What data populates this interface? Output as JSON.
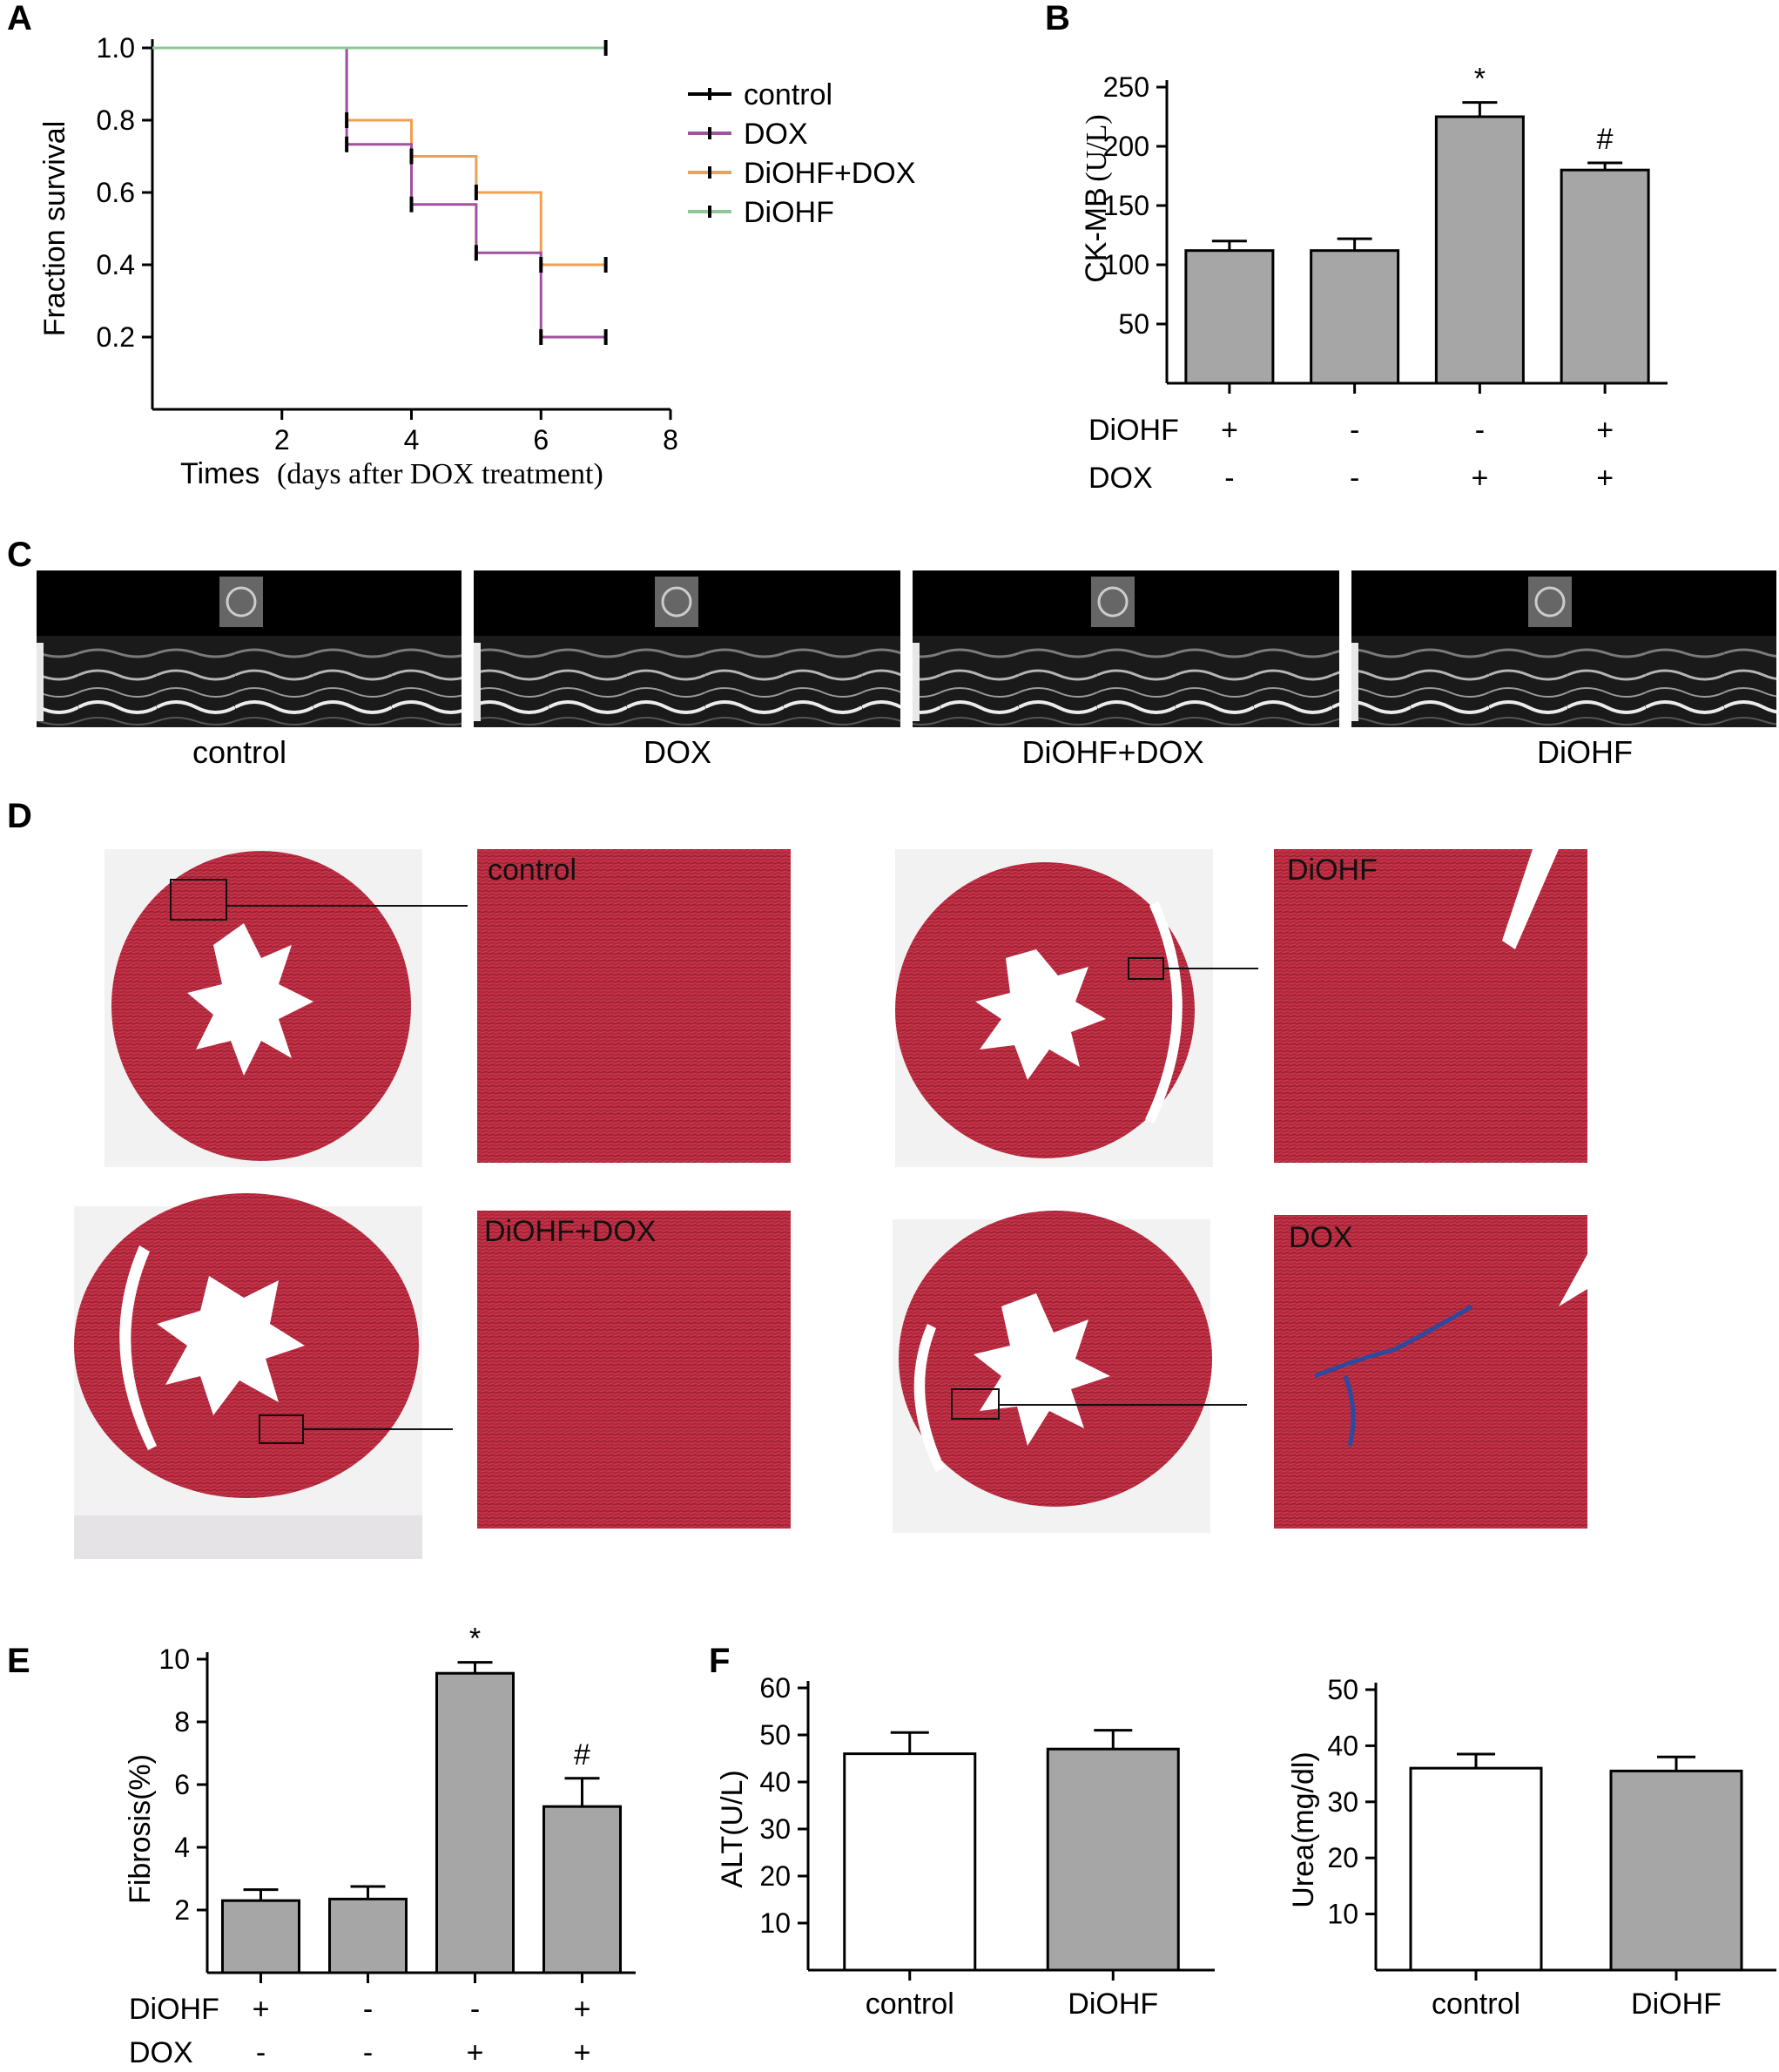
{
  "panels": {
    "A": "A",
    "B": "B",
    "C": "C",
    "D": "D",
    "E": "E",
    "F": "F"
  },
  "chart_data": [
    {
      "id": "A",
      "type": "line",
      "style": "step (Kaplan-Meier survival)",
      "xlabel": "Times",
      "xlabel_note": "(days after DOX treatment)",
      "ylabel": "Fraction survival",
      "xlim": [
        0,
        8
      ],
      "ylim": [
        0,
        1.0
      ],
      "xticks": [
        2,
        4,
        6,
        8
      ],
      "yticks": [
        0.2,
        0.4,
        0.6,
        0.8,
        1.0
      ],
      "yticklabels": [
        "0.2",
        "0.4",
        "0.6",
        "0.8",
        "1.0"
      ],
      "legend_position": "right",
      "series": [
        {
          "name": "control",
          "color": "#000000",
          "x": [
            0,
            7
          ],
          "y": [
            1.0,
            1.0
          ]
        },
        {
          "name": "DOX",
          "color": "#a0529e",
          "x": [
            0,
            3,
            3,
            4,
            4,
            5,
            5,
            6,
            6,
            7
          ],
          "y": [
            1.0,
            1.0,
            0.733,
            0.733,
            0.567,
            0.567,
            0.433,
            0.433,
            0.2,
            0.2
          ]
        },
        {
          "name": "DiOHF+DOX",
          "color": "#f0a050",
          "x": [
            0,
            3,
            3,
            4,
            4,
            5,
            5,
            6,
            6,
            7
          ],
          "y": [
            1.0,
            1.0,
            0.8,
            0.8,
            0.7,
            0.7,
            0.6,
            0.6,
            0.4,
            0.4
          ]
        },
        {
          "name": "DiOHF",
          "color": "#8cc89a",
          "x": [
            0,
            7
          ],
          "y": [
            1.0,
            1.0
          ]
        }
      ]
    },
    {
      "id": "B",
      "type": "bar",
      "ylabel": "CK-MB",
      "ylabel_unit": "(U/L)",
      "ylim": [
        0,
        250
      ],
      "yticks": [
        50,
        100,
        150,
        200,
        250
      ],
      "values": [
        112,
        112,
        225,
        180
      ],
      "errors": [
        8,
        10,
        12,
        6
      ],
      "annotations": [
        "",
        "",
        "*",
        "#"
      ],
      "bar_color": "#a6a6a7",
      "conditions": [
        {
          "label": "DiOHF",
          "values": [
            "+",
            "-",
            "-",
            "+"
          ]
        },
        {
          "label": "DOX",
          "values": [
            "-",
            "-",
            "+",
            "+"
          ]
        }
      ]
    },
    {
      "id": "E",
      "type": "bar",
      "ylabel": "Fibrosis(%)",
      "ylim": [
        0,
        10
      ],
      "yticks": [
        2,
        4,
        6,
        8,
        10
      ],
      "values": [
        2.3,
        2.35,
        9.55,
        5.3
      ],
      "errors": [
        0.35,
        0.4,
        0.35,
        0.9
      ],
      "annotations": [
        "",
        "",
        "*",
        "#"
      ],
      "bar_color": "#a6a6a7",
      "conditions": [
        {
          "label": "DiOHF",
          "values": [
            "+",
            "-",
            "-",
            "+"
          ]
        },
        {
          "label": "DOX",
          "values": [
            "-",
            "-",
            "+",
            "+"
          ]
        }
      ]
    },
    {
      "id": "F1",
      "type": "bar",
      "ylabel": "ALT(U/L)",
      "ylim": [
        0,
        60
      ],
      "yticks": [
        10,
        20,
        30,
        40,
        50,
        60
      ],
      "categories": [
        "control",
        "DiOHF"
      ],
      "values": [
        46,
        47
      ],
      "errors": [
        4.5,
        4
      ],
      "bar_colors": [
        "#ffffff",
        "#a6a6a7"
      ]
    },
    {
      "id": "F2",
      "type": "bar",
      "ylabel": "Urea(mg/dl)",
      "ylim": [
        0,
        50
      ],
      "yticks": [
        10,
        20,
        30,
        40,
        50
      ],
      "categories": [
        "control",
        "DiOHF"
      ],
      "values": [
        36,
        35.5
      ],
      "errors": [
        2.5,
        2.5
      ],
      "bar_colors": [
        "#ffffff",
        "#a6a6a7"
      ]
    }
  ],
  "echo": {
    "labels": [
      "control",
      "DOX",
      "DiOHF+DOX",
      "DiOHF"
    ]
  },
  "histology": {
    "labels": [
      "control",
      "DiOHF",
      "DiOHF+DOX",
      "DOX"
    ]
  }
}
